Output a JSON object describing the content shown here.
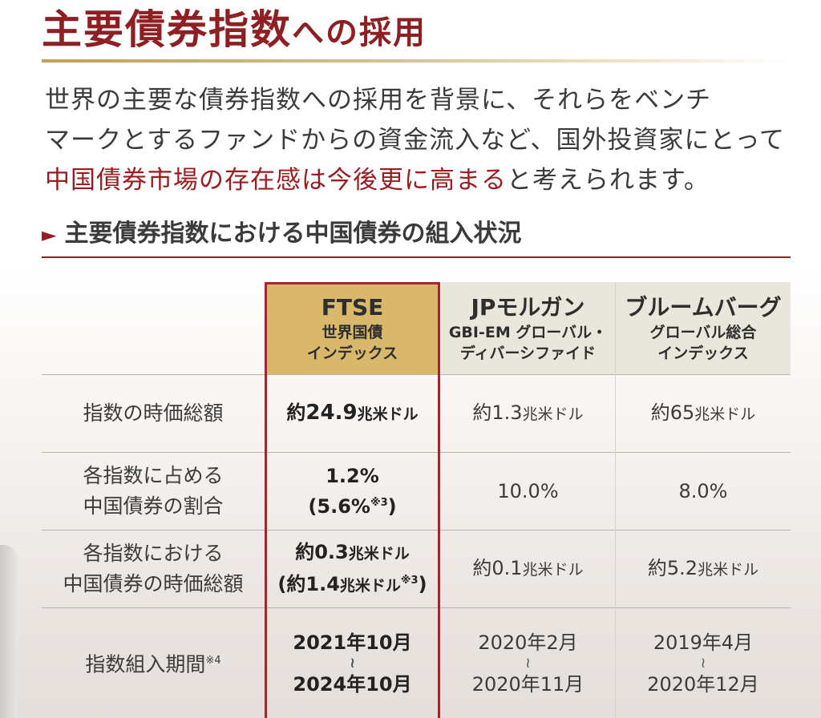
{
  "heading": {
    "main": "主要債券指数",
    "tail": "への採用"
  },
  "lead": {
    "line1": "世界の主要な債券指数への採用を背景に、それらをベンチ",
    "line2": "マークとするファンドからの資金流入など、国外投資家にとって",
    "line3_highlight": "中国債券市場の存在感は今後更に高まる",
    "line3_rest": "と考えられます。"
  },
  "subheading": {
    "arrow": "►",
    "text": "主要債券指数における中国債券の組入状況"
  },
  "table": {
    "columns": [
      {
        "name": "FTSE",
        "sub1": "世界国債",
        "sub2": "インデックス"
      },
      {
        "name": "JPモルガン",
        "sub1": "GBI-EM グローバル・",
        "sub2": "ディバーシファイド"
      },
      {
        "name": "ブルームバーグ",
        "sub1": "グローバル総合",
        "sub2": "インデックス"
      }
    ],
    "rows": [
      {
        "label1": "指数の時価総額",
        "label2": "",
        "ftse": {
          "pre": "約",
          "num": "24.9",
          "unit": "兆米ドル"
        },
        "jpm": {
          "pre": "約",
          "num": "1.3",
          "unit": "兆米ドル"
        },
        "bbg": {
          "pre": "約",
          "num": "65",
          "unit": "兆米ドル"
        }
      },
      {
        "label1": "各指数に占める",
        "label2": "中国債券の割合",
        "ftse": {
          "line1": "1.2%",
          "line2": "(5.6%",
          "note": "※3",
          "close": ")"
        },
        "jpm": {
          "value": "10.0%"
        },
        "bbg": {
          "value": "8.0%"
        }
      },
      {
        "label1": "各指数における",
        "label2": "中国債券の時価総額",
        "ftse": {
          "pre": "約",
          "num": "0.3",
          "unit": "兆米ドル",
          "line2_pre": "(約",
          "line2_num": "1.4",
          "line2_unit": "兆米ドル",
          "note": "※3",
          "close": ")"
        },
        "jpm": {
          "pre": "約",
          "num": "0.1",
          "unit": "兆米ドル"
        },
        "bbg": {
          "pre": "約",
          "num": "5.2",
          "unit": "兆米ドル"
        }
      },
      {
        "label1": "指数組入期間",
        "note": "※4",
        "ftse": {
          "from": "2021年10月",
          "wave": "≀",
          "to": "2024年10月"
        },
        "jpm": {
          "from": "2020年2月",
          "wave": "≀",
          "to": "2020年11月"
        },
        "bbg": {
          "from": "2019年4月",
          "wave": "≀",
          "to": "2020年12月"
        }
      }
    ]
  }
}
